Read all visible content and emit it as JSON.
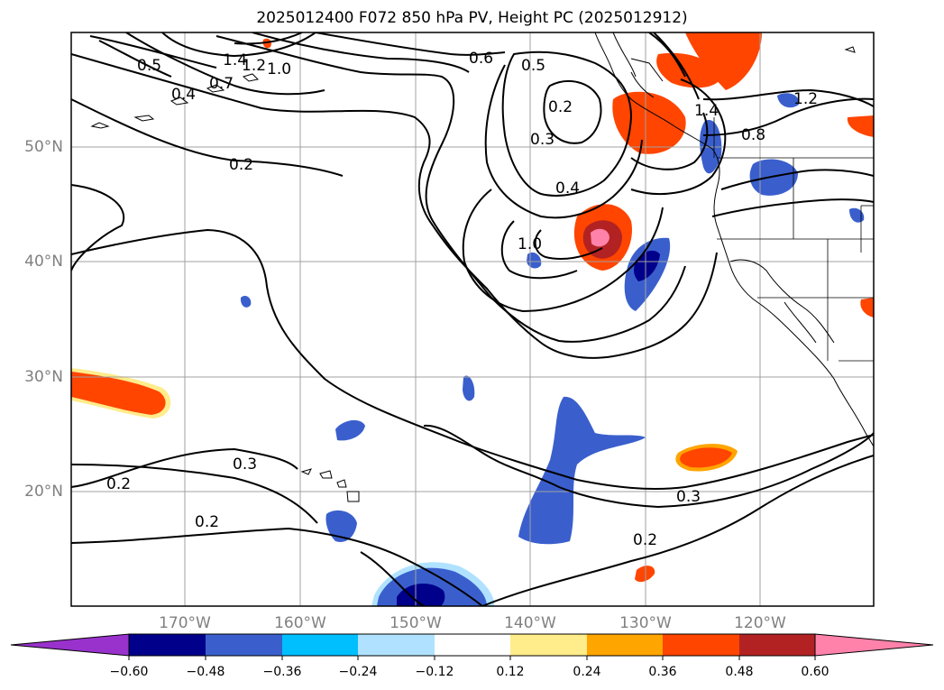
{
  "title": "2025012400 F072 850 hPa PV, Height PC (2025012912)",
  "latitude_labels": [
    "50°N",
    "40°N",
    "30°N",
    "20°N"
  ],
  "longitude_labels": [
    "170°W",
    "160°W",
    "150°W",
    "140°W",
    "130°W",
    "120°W"
  ],
  "colorbar": {
    "tick_labels": [
      "−0.60",
      "−0.48",
      "−0.36",
      "−0.24",
      "−0.12",
      "0.12",
      "0.24",
      "0.36",
      "0.48",
      "0.60"
    ],
    "colors": [
      "#9932cc",
      "#00008b",
      "#3a5fcd",
      "#00bfff",
      "#b0e2ff",
      "#ffffff",
      "#ffec8b",
      "#ffa500",
      "#ff4500",
      "#b22222",
      "#ff82ab"
    ]
  },
  "contour_labels": [
    "1.4",
    "1.2",
    "1.0",
    "0.5",
    "0.7",
    "0.4",
    "0.6",
    "0.5",
    "0.2",
    "0.3",
    "0.2",
    "0.4",
    "1.0",
    "1.4",
    "0.8",
    "1.2",
    "0.2",
    "0.3",
    "0.2",
    "0.3",
    "0.2"
  ]
}
